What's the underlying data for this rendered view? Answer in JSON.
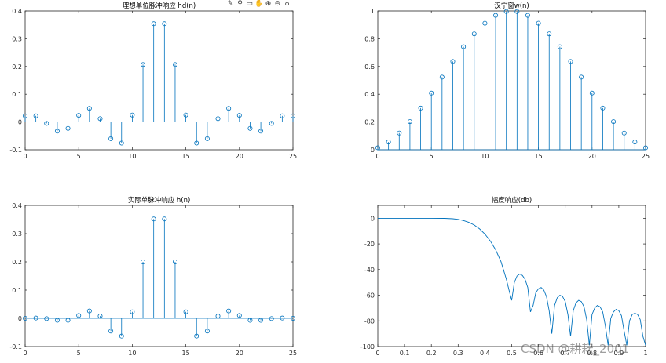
{
  "toolbar": {
    "icons": [
      "brush-icon",
      "datatip-icon",
      "rotate-icon",
      "pan-icon",
      "zoom-in-icon",
      "zoom-out-icon",
      "home-icon"
    ],
    "glyphs": [
      "✎",
      "⚲",
      "▭",
      "✋",
      "⊕",
      "⊖",
      "⌂"
    ]
  },
  "watermark": "CSDN @耕耘_2001",
  "chart_data": [
    {
      "type": "stem",
      "title": "理想单位脉冲响应 hd(n)",
      "xlim": [
        0,
        25
      ],
      "ylim": [
        -0.1,
        0.4
      ],
      "xticks": [
        0,
        5,
        10,
        15,
        20,
        25
      ],
      "yticks": [
        -0.1,
        0,
        0.1,
        0.2,
        0.3,
        0.4
      ],
      "ytick_labels": [
        "-0.1",
        "0",
        "0.1",
        "0.2",
        "0.3",
        "0.4"
      ],
      "x": [
        0,
        1,
        2,
        3,
        4,
        5,
        6,
        7,
        8,
        9,
        10,
        11,
        12,
        13,
        14,
        15,
        16,
        17,
        18,
        19,
        20,
        21,
        22,
        23,
        24,
        25
      ],
      "y": [
        0.022,
        0.022,
        -0.005,
        -0.033,
        -0.023,
        0.024,
        0.049,
        0.012,
        -0.06,
        -0.076,
        0.025,
        0.207,
        0.354,
        0.354,
        0.207,
        0.025,
        -0.076,
        -0.06,
        0.012,
        0.049,
        0.024,
        -0.023,
        -0.033,
        -0.005,
        0.022,
        0.022
      ],
      "color": "#0072BD"
    },
    {
      "type": "stem",
      "title": "汉宁窗w(n)",
      "xlim": [
        0,
        25
      ],
      "ylim": [
        0,
        1
      ],
      "xticks": [
        0,
        5,
        10,
        15,
        20,
        25
      ],
      "yticks": [
        0,
        0.2,
        0.4,
        0.6,
        0.8,
        1
      ],
      "ytick_labels": [
        "0",
        "0.2",
        "0.4",
        "0.6",
        "0.8",
        "1"
      ],
      "x": [
        0,
        1,
        2,
        3,
        4,
        5,
        6,
        7,
        8,
        9,
        10,
        11,
        12,
        13,
        14,
        15,
        16,
        17,
        18,
        19,
        20,
        21,
        22,
        23,
        24,
        25
      ],
      "y": [
        0.014,
        0.056,
        0.12,
        0.203,
        0.3,
        0.408,
        0.523,
        0.636,
        0.742,
        0.835,
        0.912,
        0.968,
        0.996,
        0.996,
        0.968,
        0.912,
        0.835,
        0.742,
        0.636,
        0.523,
        0.408,
        0.3,
        0.203,
        0.12,
        0.056,
        0.014
      ],
      "color": "#0072BD"
    },
    {
      "type": "stem",
      "title": "实际单脉冲响应 h(n)",
      "xlim": [
        0,
        25
      ],
      "ylim": [
        -0.1,
        0.4
      ],
      "xticks": [
        0,
        5,
        10,
        15,
        20,
        25
      ],
      "yticks": [
        -0.1,
        0,
        0.1,
        0.2,
        0.3,
        0.4
      ],
      "ytick_labels": [
        "-0.1",
        "0",
        "0.1",
        "0.2",
        "0.3",
        "0.4"
      ],
      "x": [
        0,
        1,
        2,
        3,
        4,
        5,
        6,
        7,
        8,
        9,
        10,
        11,
        12,
        13,
        14,
        15,
        16,
        17,
        18,
        19,
        20,
        21,
        22,
        23,
        24,
        25
      ],
      "y": [
        0.0,
        0.001,
        -0.001,
        -0.007,
        -0.007,
        0.01,
        0.026,
        0.008,
        -0.045,
        -0.063,
        0.023,
        0.2,
        0.352,
        0.352,
        0.2,
        0.023,
        -0.063,
        -0.045,
        0.008,
        0.026,
        0.01,
        -0.007,
        -0.007,
        -0.001,
        0.001,
        0.0
      ],
      "color": "#0072BD"
    },
    {
      "type": "line",
      "title": "幅度响应(db)",
      "xlim": [
        0,
        1
      ],
      "ylim": [
        -100,
        10
      ],
      "xticks": [
        0,
        0.1,
        0.2,
        0.3,
        0.4,
        0.5,
        0.6,
        0.7,
        0.8,
        0.9,
        1
      ],
      "xtick_labels": [
        "0",
        "0.1",
        "0.2",
        "0.3",
        "0.4",
        "0.5",
        "0.6",
        "0.7",
        "0.8",
        "0.9",
        "1"
      ],
      "yticks": [
        -100,
        -80,
        -60,
        -40,
        -20,
        0
      ],
      "ytick_labels": [
        "-100",
        "-80",
        "-60",
        "-40",
        "-20",
        "0"
      ],
      "x": [
        0,
        0.05,
        0.1,
        0.15,
        0.2,
        0.25,
        0.28,
        0.3,
        0.32,
        0.34,
        0.36,
        0.38,
        0.4,
        0.42,
        0.44,
        0.46,
        0.48,
        0.49,
        0.5,
        0.51,
        0.52,
        0.53,
        0.54,
        0.55,
        0.56,
        0.57,
        0.58,
        0.59,
        0.6,
        0.61,
        0.62,
        0.63,
        0.64,
        0.65,
        0.66,
        0.67,
        0.68,
        0.69,
        0.7,
        0.71,
        0.72,
        0.73,
        0.74,
        0.75,
        0.76,
        0.77,
        0.78,
        0.79,
        0.8,
        0.81,
        0.82,
        0.83,
        0.84,
        0.85,
        0.86,
        0.87,
        0.88,
        0.89,
        0.9,
        0.91,
        0.92,
        0.93,
        0.94,
        0.95,
        0.96,
        0.97,
        0.98,
        0.99,
        1.0
      ],
      "y": [
        0,
        0,
        0,
        0,
        0,
        -0.1,
        -0.4,
        -0.9,
        -1.8,
        -3.2,
        -5.3,
        -8.3,
        -12.3,
        -17.6,
        -24.5,
        -33.8,
        -47.5,
        -56,
        -64,
        -50,
        -45,
        -43.5,
        -44.5,
        -47.5,
        -54,
        -73,
        -68,
        -58,
        -55,
        -54,
        -56,
        -61,
        -72,
        -90,
        -68,
        -62,
        -60,
        -61,
        -65,
        -75,
        -92,
        -72,
        -66,
        -64,
        -65,
        -69,
        -79,
        -99,
        -75,
        -70,
        -68,
        -69,
        -73,
        -84,
        -99,
        -78,
        -73,
        -71,
        -72,
        -76,
        -88,
        -99,
        -80,
        -75,
        -74,
        -75,
        -79,
        -92,
        -99
      ],
      "color": "#0072BD"
    }
  ]
}
